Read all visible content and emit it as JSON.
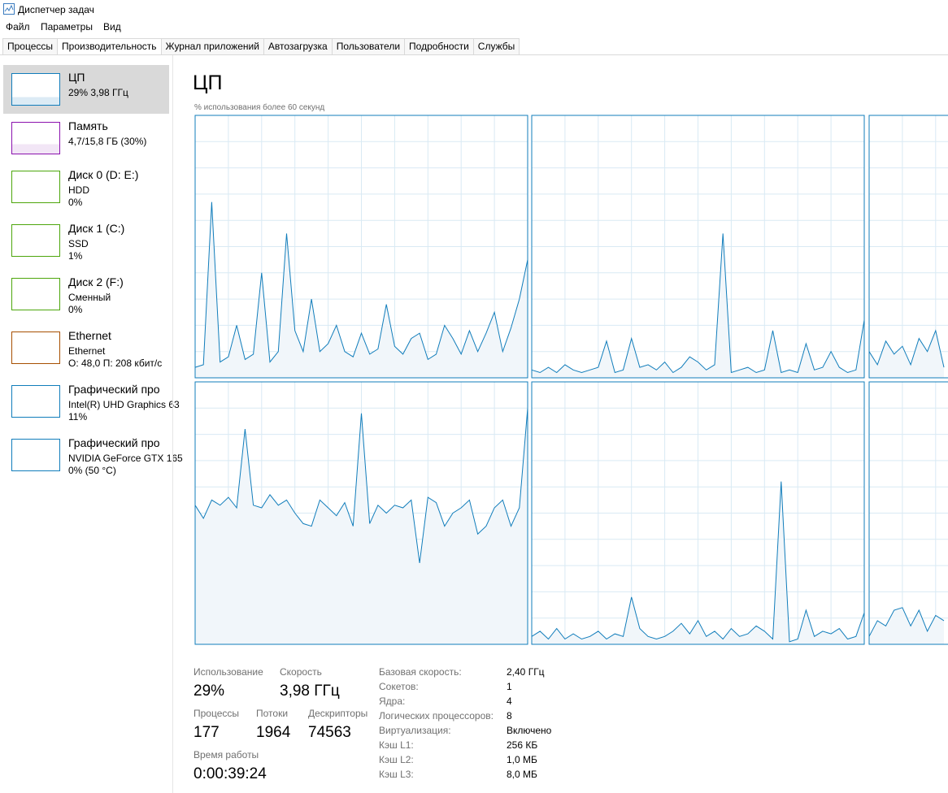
{
  "window_title": "Диспетчер задач",
  "menu": [
    "Файл",
    "Параметры",
    "Вид"
  ],
  "tabs": [
    "Процессы",
    "Производительность",
    "Журнал приложений",
    "Автозагрузка",
    "Пользователи",
    "Подробности",
    "Службы"
  ],
  "sidebar": [
    {
      "name": "ЦП",
      "lines": [
        "29% 3,98 ГГц"
      ]
    },
    {
      "name": "Память",
      "lines": [
        "4,7/15,8 ГБ (30%)"
      ]
    },
    {
      "name": "Диск 0 (D: E:)",
      "lines": [
        "HDD",
        "0%"
      ]
    },
    {
      "name": "Диск 1 (C:)",
      "lines": [
        "SSD",
        "1%"
      ]
    },
    {
      "name": "Диск 2 (F:)",
      "lines": [
        "Сменный",
        "0%"
      ]
    },
    {
      "name": "Ethernet",
      "lines": [
        "Ethernet",
        "О: 48,0 П: 208 кбит/с"
      ]
    },
    {
      "name": "Графический про",
      "lines": [
        "Intel(R) UHD Graphics 63",
        "11%"
      ]
    },
    {
      "name": "Графический про",
      "lines": [
        "NVIDIA GeForce GTX 165",
        "0% (50 °C)"
      ]
    }
  ],
  "main": {
    "title": "ЦП",
    "subtitle": "% использования более 60 секунд"
  },
  "graphs": [
    {
      "values": [
        4,
        5,
        67,
        6,
        8,
        20,
        7,
        9,
        40,
        6,
        10,
        55,
        18,
        10,
        30,
        10,
        13,
        20,
        10,
        8,
        17,
        9,
        11,
        28,
        12,
        9,
        15,
        17,
        7,
        9,
        20,
        15,
        9,
        18,
        10,
        17,
        25,
        10,
        19,
        30,
        45
      ]
    },
    {
      "values": [
        3,
        2,
        4,
        2,
        5,
        3,
        2,
        3,
        4,
        14,
        2,
        3,
        15,
        4,
        5,
        3,
        6,
        2,
        4,
        8,
        6,
        3,
        5,
        55,
        2,
        3,
        4,
        2,
        3,
        18,
        2,
        3,
        2,
        13,
        3,
        4,
        10,
        4,
        2,
        3,
        22
      ]
    },
    {
      "values": [
        10,
        5,
        14,
        9,
        12,
        5,
        15,
        10,
        18,
        4
      ]
    },
    {
      "values": [
        53,
        48,
        55,
        53,
        56,
        52,
        82,
        53,
        52,
        57,
        53,
        55,
        50,
        46,
        45,
        55,
        52,
        49,
        54,
        45,
        88,
        46,
        53,
        50,
        53,
        52,
        55,
        31,
        56,
        54,
        45,
        50,
        52,
        55,
        42,
        45,
        52,
        55,
        45,
        52,
        90
      ]
    },
    {
      "values": [
        3,
        5,
        2,
        6,
        2,
        4,
        2,
        3,
        5,
        2,
        4,
        3,
        18,
        6,
        3,
        2,
        3,
        5,
        8,
        4,
        9,
        3,
        5,
        2,
        6,
        3,
        4,
        7,
        5,
        2,
        62,
        1,
        2,
        13,
        3,
        5,
        4,
        6,
        2,
        3,
        12
      ]
    },
    {
      "values": [
        3,
        9,
        7,
        13,
        14,
        7,
        13,
        5,
        11,
        9
      ]
    }
  ],
  "stats": [
    {
      "label": "Использование",
      "value": "29%"
    },
    {
      "label": "Скорость",
      "value": "3,98 ГГц"
    },
    {
      "label": "Процессы",
      "value": "177"
    },
    {
      "label": "Потоки",
      "value": "1964"
    },
    {
      "label": "Дескрипторы",
      "value": "74563"
    },
    {
      "label": "Время работы",
      "value": "0:00:39:24"
    }
  ],
  "details": [
    [
      "Базовая скорость:",
      "2,40 ГГц"
    ],
    [
      "Сокетов:",
      "1"
    ],
    [
      "Ядра:",
      "4"
    ],
    [
      "Логических процессоров:",
      "8"
    ],
    [
      "Виртуализация:",
      "Включено"
    ],
    [
      "Кэш L1:",
      "256 КБ"
    ],
    [
      "Кэш L2:",
      "1,0 МБ"
    ],
    [
      "Кэш L3:",
      "8,0 МБ"
    ]
  ]
}
